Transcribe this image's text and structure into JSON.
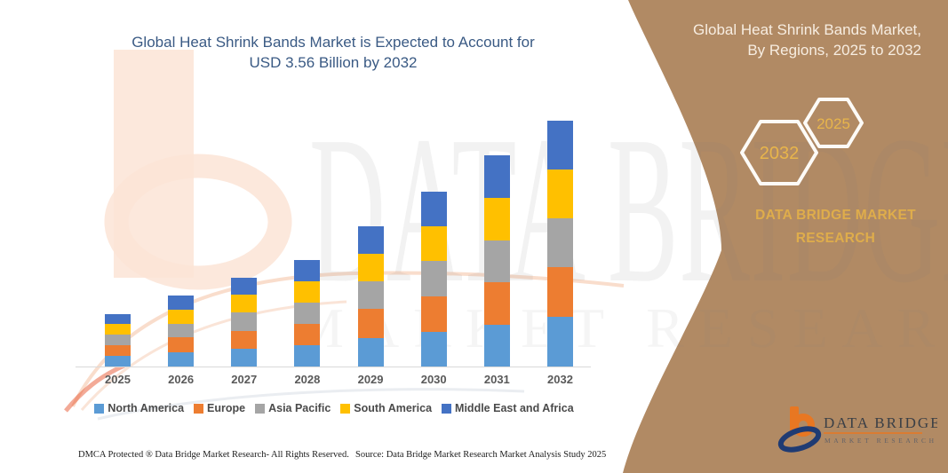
{
  "chart": {
    "title_line1": "Global Heat Shrink Bands Market is Expected to Account for",
    "title_line2": "USD 3.56 Billion by 2032"
  },
  "chart_data": {
    "type": "bar",
    "stacked": true,
    "title": "Global Heat Shrink Bands Market is Expected to Account for USD 3.56 Billion by 2032",
    "unit": "USD Billion",
    "categories": [
      "2025",
      "2026",
      "2027",
      "2028",
      "2029",
      "2030",
      "2031",
      "2032"
    ],
    "series": [
      {
        "name": "North America",
        "color": "#5B9BD5",
        "values": [
          0.15,
          0.21,
          0.26,
          0.31,
          0.41,
          0.5,
          0.61,
          0.72
        ]
      },
      {
        "name": "Europe",
        "color": "#ED7D31",
        "values": [
          0.16,
          0.21,
          0.26,
          0.31,
          0.42,
          0.51,
          0.61,
          0.72
        ]
      },
      {
        "name": "Asia Pacific",
        "color": "#A5A5A5",
        "values": [
          0.15,
          0.2,
          0.26,
          0.31,
          0.4,
          0.52,
          0.61,
          0.71
        ]
      },
      {
        "name": "South America",
        "color": "#FFC000",
        "values": [
          0.16,
          0.2,
          0.26,
          0.31,
          0.4,
          0.5,
          0.61,
          0.71
        ]
      },
      {
        "name": "Middle East and Africa",
        "color": "#4472C4",
        "values": [
          0.14,
          0.21,
          0.25,
          0.31,
          0.4,
          0.5,
          0.62,
          0.7
        ]
      }
    ],
    "totals": [
      0.76,
      1.03,
      1.29,
      1.55,
      2.03,
      2.53,
      3.06,
      3.56
    ],
    "xlabel": "",
    "ylabel": "",
    "ylim": [
      0,
      3.9
    ],
    "grid": false,
    "legend_position": "bottom"
  },
  "sidebar": {
    "title_line1": "Global Heat Shrink Bands Market,",
    "title_line2": "By Regions, 2025 to 2032",
    "hex_large_year": "2032",
    "hex_small_year": "2025",
    "brand_line1": "DATA BRIDGE MARKET",
    "brand_line2": "RESEARCH",
    "panel_color": "#B18A64",
    "accent_gold": "#DFAD4B"
  },
  "logo": {
    "name": "DATA BRIDGE",
    "subtitle": "MARKET RESEARCH"
  },
  "watermark": {
    "line1": "DATA BRIDGE",
    "line2": "MARKET RESEARCH"
  },
  "footer": {
    "left": "DMCA Protected ® Data Bridge Market Research-  All Rights Reserved.",
    "source": "Source: Data Bridge Market Research  Market Analysis Study 2025"
  }
}
